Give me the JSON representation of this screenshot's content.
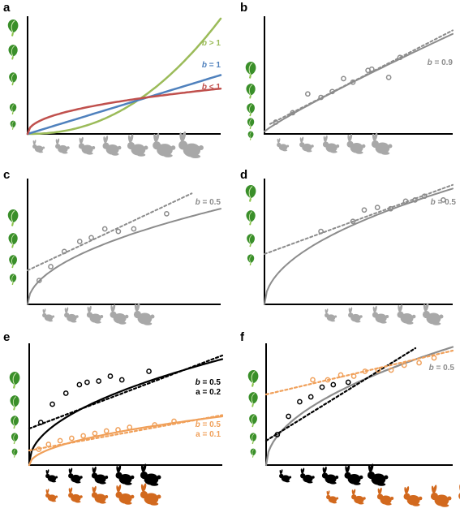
{
  "colors": {
    "gray": "#8c8c8c",
    "green": "#9bbb59",
    "blue": "#4f81bd",
    "red": "#c0504d",
    "black": "#000000",
    "orange": "#f0a05a",
    "rabbit_gray": "#a8a8a8",
    "rabbit_orange": "#d2691e",
    "leaf_green": "#3a8f2a"
  },
  "icons": {
    "plant": "leafy-plant-icon",
    "rabbit": "rabbit-icon"
  },
  "panels": [
    {
      "letter": "a",
      "labels": [
        {
          "b": "b",
          "rest": " > 1",
          "color": "#9bbb59"
        },
        {
          "b": "b",
          "rest": " = 1",
          "color": "#4f81bd"
        },
        {
          "b": "b",
          "rest": " < 1",
          "color": "#c0504d"
        }
      ],
      "curves_exponents": [
        2.2,
        1,
        0.45
      ],
      "plants": 5,
      "rabbit_rows": [
        {
          "count": 7,
          "color": "gray"
        }
      ]
    },
    {
      "letter": "b",
      "labels": [
        {
          "b": "b",
          "rest": " = 0.9",
          "color": "#8c8c8c"
        }
      ],
      "b": 0.9,
      "points": [
        [
          0.06,
          0.1
        ],
        [
          0.15,
          0.18
        ],
        [
          0.23,
          0.34
        ],
        [
          0.3,
          0.31
        ],
        [
          0.36,
          0.36
        ],
        [
          0.42,
          0.47
        ],
        [
          0.47,
          0.44
        ],
        [
          0.55,
          0.54
        ],
        [
          0.57,
          0.55
        ],
        [
          0.66,
          0.48
        ],
        [
          0.72,
          0.65
        ]
      ],
      "plants": 5,
      "rabbit_rows": [
        {
          "count": 5,
          "color": "gray"
        }
      ]
    },
    {
      "letter": "c",
      "labels": [
        {
          "b": "b",
          "rest": " = 0.5",
          "color": "#8c8c8c"
        }
      ],
      "b": 0.5,
      "points": [
        [
          0.06,
          0.19
        ],
        [
          0.12,
          0.3
        ],
        [
          0.19,
          0.42
        ],
        [
          0.27,
          0.5
        ],
        [
          0.33,
          0.53
        ],
        [
          0.4,
          0.6
        ],
        [
          0.47,
          0.58
        ],
        [
          0.55,
          0.6
        ],
        [
          0.72,
          0.72
        ]
      ],
      "plants": 4,
      "rabbit_rows": [
        {
          "count": 5,
          "color": "gray"
        }
      ]
    },
    {
      "letter": "d",
      "labels": [
        {
          "b": "b",
          "rest": " = 0.5",
          "color": "#8c8c8c"
        }
      ],
      "b": 0.5,
      "points": [
        [
          0.3,
          0.58
        ],
        [
          0.47,
          0.66
        ],
        [
          0.53,
          0.75
        ],
        [
          0.6,
          0.77
        ],
        [
          0.67,
          0.76
        ],
        [
          0.75,
          0.82
        ],
        [
          0.8,
          0.83
        ],
        [
          0.85,
          0.86
        ],
        [
          0.95,
          0.83
        ]
      ],
      "plants": 4,
      "rabbit_rows": [
        {
          "count": 5,
          "color": "gray"
        }
      ]
    },
    {
      "letter": "e",
      "labels": [
        {
          "b": "b",
          "rest": " = 0.5",
          "color": "#000000",
          "line2": "a = 0.2"
        },
        {
          "b": "b",
          "rest": " = 0.5",
          "color": "#f0a05a",
          "line2": "a = 0.1"
        }
      ],
      "b": 0.5,
      "points_black": [
        [
          0.06,
          0.35
        ],
        [
          0.12,
          0.5
        ],
        [
          0.19,
          0.59
        ],
        [
          0.26,
          0.66
        ],
        [
          0.3,
          0.68
        ],
        [
          0.36,
          0.69
        ],
        [
          0.42,
          0.73
        ],
        [
          0.48,
          0.7
        ],
        [
          0.62,
          0.77
        ]
      ],
      "points_orange": [
        [
          0.05,
          0.13
        ],
        [
          0.1,
          0.17
        ],
        [
          0.16,
          0.2
        ],
        [
          0.22,
          0.22
        ],
        [
          0.28,
          0.24
        ],
        [
          0.34,
          0.26
        ],
        [
          0.4,
          0.28
        ],
        [
          0.46,
          0.29
        ],
        [
          0.52,
          0.31
        ],
        [
          0.65,
          0.33
        ],
        [
          0.75,
          0.36
        ]
      ],
      "plants": 5,
      "rabbit_rows": [
        {
          "count": 5,
          "color": "black"
        },
        {
          "count": 5,
          "color": "orange"
        }
      ]
    },
    {
      "letter": "f",
      "labels": [
        {
          "b": "b",
          "rest": " = 0.5",
          "color": "#8c8c8c"
        }
      ],
      "b": 0.5,
      "points_black": [
        [
          0.06,
          0.25
        ],
        [
          0.12,
          0.4
        ],
        [
          0.18,
          0.52
        ],
        [
          0.24,
          0.56
        ],
        [
          0.3,
          0.64
        ],
        [
          0.36,
          0.66
        ],
        [
          0.44,
          0.68
        ]
      ],
      "points_orange": [
        [
          0.25,
          0.7
        ],
        [
          0.33,
          0.7
        ],
        [
          0.4,
          0.74
        ],
        [
          0.47,
          0.73
        ],
        [
          0.53,
          0.77
        ],
        [
          0.6,
          0.78
        ],
        [
          0.67,
          0.78
        ],
        [
          0.74,
          0.82
        ],
        [
          0.82,
          0.84
        ],
        [
          0.9,
          0.88
        ]
      ],
      "plants": 5,
      "rabbit_rows": [
        {
          "count": 5,
          "color": "black"
        },
        {
          "count": 6,
          "color": "orange"
        }
      ]
    }
  ]
}
